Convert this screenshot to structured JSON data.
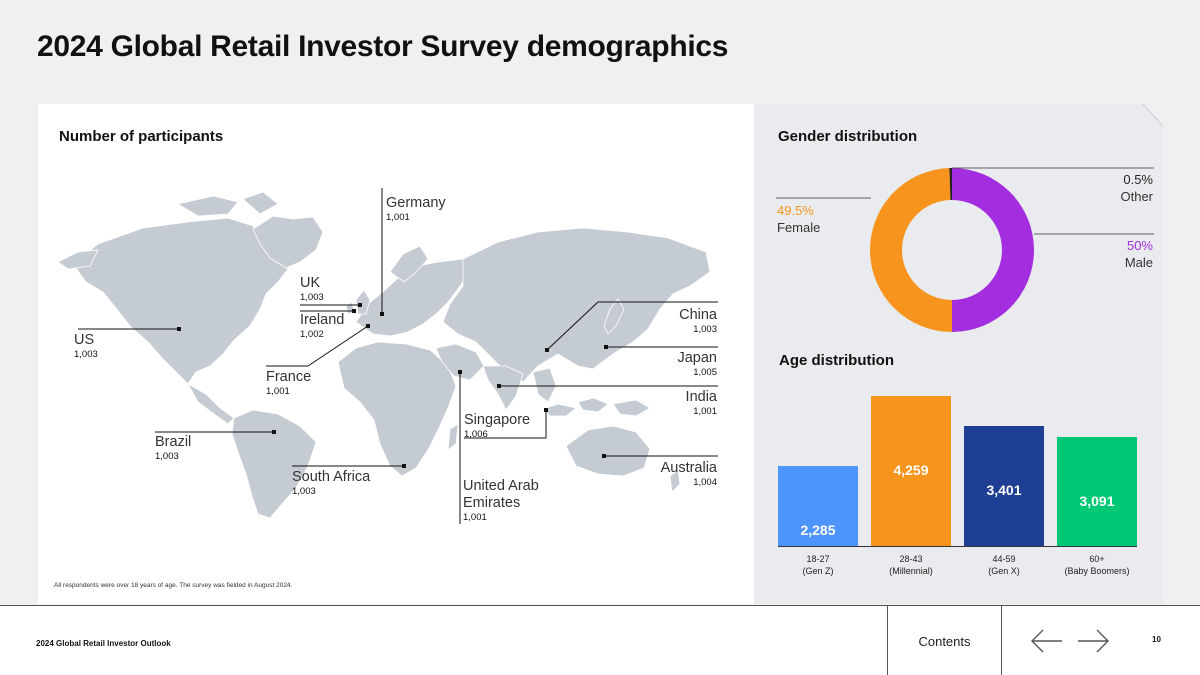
{
  "page": {
    "title": "2024 Global Retail Investor Survey demographics",
    "footnote": "All respondents were over 18 years of age. The survey was fielded in August 2024."
  },
  "map": {
    "title": "Number of participants",
    "countries": [
      {
        "name": "US",
        "count": "1,003"
      },
      {
        "name": "UK",
        "count": "1,003"
      },
      {
        "name": "Ireland",
        "count": "1,002"
      },
      {
        "name": "Germany",
        "count": "1,001"
      },
      {
        "name": "France",
        "count": "1,001"
      },
      {
        "name": "Brazil",
        "count": "1,003"
      },
      {
        "name": "South Africa",
        "count": "1,003"
      },
      {
        "name": "United Arab Emirates",
        "count": "1,001"
      },
      {
        "name": "Singapore",
        "count": "1,006"
      },
      {
        "name": "China",
        "count": "1,003"
      },
      {
        "name": "Japan",
        "count": "1,005"
      },
      {
        "name": "India",
        "count": "1,001"
      },
      {
        "name": "Australia",
        "count": "1,004"
      }
    ]
  },
  "chart_data": [
    {
      "type": "pie",
      "title": "Gender distribution",
      "slices": [
        {
          "label": "Female",
          "value": 49.5,
          "display": "49.5%",
          "color": "#f7941d"
        },
        {
          "label": "Male",
          "value": 50,
          "display": "50%",
          "color": "#a22ee0"
        },
        {
          "label": "Other",
          "value": 0.5,
          "display": "0.5%",
          "color": "#222222"
        }
      ]
    },
    {
      "type": "bar",
      "title": "Age distribution",
      "categories": [
        "18-27 (Gen Z)",
        "28-43 (Millennial)",
        "44-59 (Gen X)",
        "60+ (Baby Boomers)"
      ],
      "category_lines": [
        [
          "18-27",
          "(Gen Z)"
        ],
        [
          "28-43",
          "(Millennial)"
        ],
        [
          "44-59",
          "(Gen X)"
        ],
        [
          "60+",
          "(Baby Boomers)"
        ]
      ],
      "values": [
        2285,
        4259,
        3401,
        3091
      ],
      "value_labels": [
        "2,285",
        "4,259",
        "3,401",
        "3,091"
      ],
      "colors": [
        "#4d94ff",
        "#f7941d",
        "#1f3f94",
        "#00c875"
      ],
      "ylim": [
        0,
        4259
      ]
    }
  ],
  "footer": {
    "title": "2024 Global Retail Investor Outlook",
    "contents_label": "Contents",
    "page_number": "10"
  }
}
